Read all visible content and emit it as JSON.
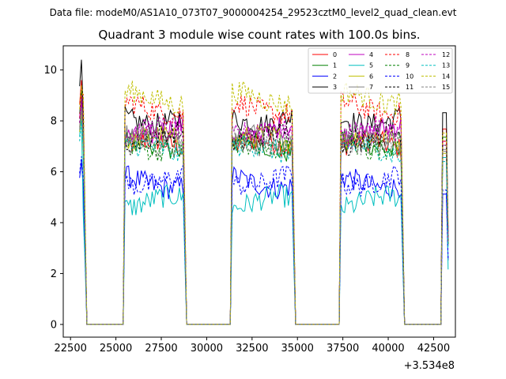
{
  "suptitle": "Data file: modeM0/AS1A10_073T07_9000004254_29523cztM0_level2_quad_clean.evt",
  "chart_data": {
    "type": "line",
    "title": "Quadrant 3 module wise count rates with 100.0s bins.",
    "xlabel": "",
    "ylabel": "",
    "x_offset_label": "+3.534e8",
    "xlim": [
      22100,
      43700
    ],
    "ylim": [
      -0.5,
      10.95
    ],
    "x_ticks": [
      22500,
      25000,
      27500,
      30000,
      32500,
      35000,
      37500,
      40000,
      42500
    ],
    "x_tick_labels": [
      "22500",
      "25000",
      "27500",
      "30000",
      "32500",
      "35000",
      "37500",
      "40000",
      "42500"
    ],
    "y_ticks": [
      0,
      2,
      4,
      6,
      8,
      10
    ],
    "y_tick_labels": [
      "0",
      "2",
      "4",
      "6",
      "8",
      "10"
    ],
    "grid": false,
    "legend_position": "top-right",
    "legend_columns": 4,
    "bin_width_s": 100,
    "on_segments": [
      {
        "x_start": 23000,
        "x_end": 23300
      },
      {
        "x_start": 25500,
        "x_end": 28800
      },
      {
        "x_start": 31400,
        "x_end": 34800
      },
      {
        "x_start": 37400,
        "x_end": 40800
      },
      {
        "x_start": 43000,
        "x_end": 43300
      }
    ],
    "off_level": 0,
    "series": [
      {
        "name": "0",
        "color": "#ff0000",
        "dashed": false,
        "level": 7.0,
        "peak": 9.6
      },
      {
        "name": "1",
        "color": "#008000",
        "dashed": false,
        "level": 7.0,
        "peak": 9.2
      },
      {
        "name": "2",
        "color": "#0000ff",
        "dashed": false,
        "level": 5.6,
        "peak": 6.4
      },
      {
        "name": "3",
        "color": "#000000",
        "dashed": false,
        "level": 8.1,
        "peak": 10.4
      },
      {
        "name": "4",
        "color": "#bf00bf",
        "dashed": false,
        "level": 7.6,
        "peak": 9.0
      },
      {
        "name": "5",
        "color": "#00bfbf",
        "dashed": false,
        "level": 4.8,
        "peak": 8.2
      },
      {
        "name": "6",
        "color": "#bfbf00",
        "dashed": false,
        "level": 7.2,
        "peak": 8.4
      },
      {
        "name": "7",
        "color": "#808080",
        "dashed": false,
        "level": 7.3,
        "peak": 8.6
      },
      {
        "name": "8",
        "color": "#ff0000",
        "dashed": true,
        "level": 8.5,
        "peak": 9.0
      },
      {
        "name": "9",
        "color": "#008000",
        "dashed": true,
        "level": 7.1,
        "peak": 8.8
      },
      {
        "name": "10",
        "color": "#0000ff",
        "dashed": true,
        "level": 5.7,
        "peak": 6.6
      },
      {
        "name": "11",
        "color": "#000000",
        "dashed": true,
        "level": 7.3,
        "peak": 8.8
      },
      {
        "name": "12",
        "color": "#bf00bf",
        "dashed": true,
        "level": 7.5,
        "peak": 8.8
      },
      {
        "name": "13",
        "color": "#00bfbf",
        "dashed": true,
        "level": 6.8,
        "peak": 8.0
      },
      {
        "name": "14",
        "color": "#bfbf00",
        "dashed": true,
        "level": 8.9,
        "peak": 9.4
      },
      {
        "name": "15",
        "color": "#808080",
        "dashed": true,
        "level": 7.2,
        "peak": 8.5
      }
    ]
  }
}
